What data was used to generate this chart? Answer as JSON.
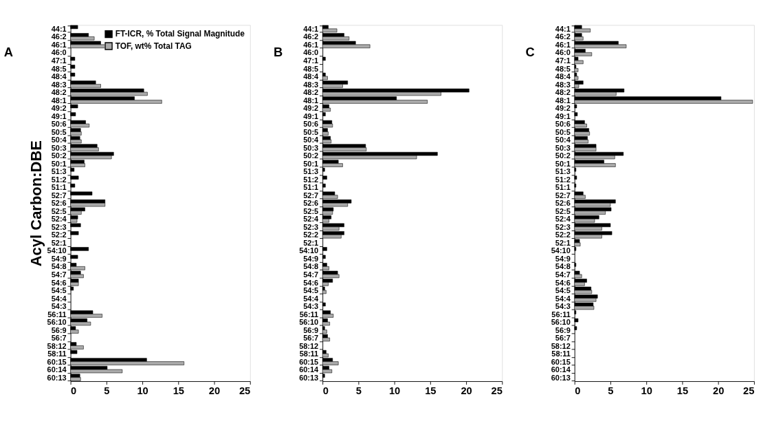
{
  "chart_data": [
    {
      "type": "bar",
      "orientation": "horizontal",
      "title": "A",
      "ylabel": "Acyl Carbon:DBE",
      "legend": "top right",
      "grid": false,
      "categories": [
        "44:1",
        "46:2",
        "46:1",
        "46:0",
        "47:1",
        "48:5",
        "48:4",
        "48:3",
        "48:2",
        "48:1",
        "49:2",
        "49:1",
        "50:6",
        "50:5",
        "50:4",
        "50:3",
        "50:2",
        "50:1",
        "51:3",
        "51:2",
        "51:1",
        "52:7",
        "52:6",
        "52:5",
        "52:4",
        "52:3",
        "52:2",
        "52:1",
        "54:10",
        "54:9",
        "54:8",
        "54:7",
        "54:6",
        "54:5",
        "54:4",
        "54:3",
        "56:11",
        "56:10",
        "56:9",
        "56:7",
        "58:12",
        "58:11",
        "60:15",
        "60:14",
        "60:13"
      ],
      "xlim": [
        0,
        25
      ],
      "xticks": [
        0,
        5,
        10,
        15,
        20,
        25
      ],
      "series": [
        {
          "name": "FT-ICR, % Total Signal Magnitude",
          "color": "#000000",
          "values": [
            1.0,
            2.5,
            4.2,
            null,
            0.6,
            0.6,
            0.6,
            3.5,
            10.2,
            8.9,
            1.0,
            0.7,
            2.1,
            1.4,
            1.3,
            3.7,
            6.0,
            1.9,
            0.5,
            1.1,
            0.6,
            3.0,
            4.8,
            2.0,
            1.0,
            1.4,
            1.1,
            null,
            2.5,
            1.0,
            0.8,
            1.4,
            1.1,
            0.4,
            null,
            null,
            3.1,
            2.3,
            0.7,
            null,
            0.8,
            0.9,
            10.6,
            5.1,
            1.3
          ]
        },
        {
          "name": "TOF, wt% Total TAG",
          "color": "#aaaaaa",
          "values": [
            null,
            3.3,
            4.8,
            null,
            null,
            null,
            null,
            4.2,
            10.7,
            12.7,
            null,
            null,
            2.6,
            1.5,
            1.5,
            3.9,
            5.7,
            2.0,
            null,
            null,
            null,
            null,
            4.8,
            1.5,
            0.9,
            null,
            null,
            null,
            null,
            null,
            2.0,
            1.8,
            1.1,
            null,
            null,
            null,
            4.4,
            2.8,
            1.1,
            null,
            1.8,
            null,
            15.8,
            7.2,
            1.4
          ]
        }
      ]
    },
    {
      "type": "bar",
      "orientation": "horizontal",
      "title": "B",
      "grid": false,
      "categories": [
        "44:1",
        "46:2",
        "46:1",
        "46:0",
        "47:1",
        "48:5",
        "48:4",
        "48:3",
        "48:2",
        "48:1",
        "49:2",
        "49:1",
        "50:6",
        "50:5",
        "50:4",
        "50:3",
        "50:2",
        "50:1",
        "51:3",
        "51:2",
        "51:1",
        "52:7",
        "52:6",
        "52:5",
        "52:4",
        "52:3",
        "52:2",
        "52:1",
        "54:10",
        "54:9",
        "54:8",
        "54:7",
        "54:6",
        "54:5",
        "54:4",
        "54:3",
        "56:11",
        "56:10",
        "56:9",
        "56:7",
        "58:12",
        "58:11",
        "60:15",
        "60:14",
        "60:13"
      ],
      "xlim": [
        0,
        25
      ],
      "xticks": [
        0,
        5,
        10,
        15,
        20,
        25
      ],
      "series": [
        {
          "color": "#000000",
          "values": [
            0.8,
            3.0,
            4.6,
            null,
            0.4,
            null,
            0.4,
            3.5,
            20.4,
            10.3,
            0.9,
            0.4,
            1.3,
            0.7,
            1.1,
            6.0,
            16.0,
            2.2,
            0.3,
            0.6,
            0.4,
            1.7,
            4.0,
            1.5,
            1.2,
            3.0,
            3.0,
            null,
            0.6,
            0.4,
            0.6,
            2.1,
            1.4,
            0.3,
            null,
            0.4,
            1.1,
            0.7,
            0.3,
            0.7,
            null,
            0.5,
            1.4,
            0.9,
            0.3
          ]
        },
        {
          "color": "#aaaaaa",
          "values": [
            2.0,
            3.7,
            6.6,
            null,
            null,
            null,
            0.7,
            2.8,
            16.5,
            14.6,
            1.1,
            null,
            1.4,
            0.8,
            1.2,
            6.1,
            13.1,
            2.8,
            null,
            null,
            null,
            2.1,
            3.5,
            1.4,
            0.9,
            2.3,
            2.6,
            null,
            null,
            null,
            0.9,
            2.3,
            0.8,
            0.5,
            null,
            null,
            1.5,
            1.0,
            0.6,
            1.0,
            null,
            0.8,
            2.2,
            1.3,
            null
          ]
        }
      ]
    },
    {
      "type": "bar",
      "orientation": "horizontal",
      "title": "C",
      "grid": false,
      "categories": [
        "44:1",
        "46:2",
        "46:1",
        "46:0",
        "47:1",
        "48:5",
        "48:4",
        "48:3",
        "48:2",
        "48:1",
        "49:2",
        "49:1",
        "50:6",
        "50:5",
        "50:4",
        "50:3",
        "50:2",
        "50:1",
        "51:3",
        "51:2",
        "51:1",
        "52:7",
        "52:6",
        "52:5",
        "52:4",
        "52:3",
        "52:2",
        "52:1",
        "54:10",
        "54:9",
        "54:8",
        "54:7",
        "54:6",
        "54:5",
        "54:4",
        "54:3",
        "56:11",
        "56:10",
        "56:9",
        "56:7",
        "58:12",
        "58:11",
        "60:15",
        "60:14",
        "60:13"
      ],
      "xlim": [
        0,
        25
      ],
      "xticks": [
        0,
        5,
        10,
        15,
        20,
        25
      ],
      "series": [
        {
          "color": "#000000",
          "values": [
            1.0,
            1.0,
            6.1,
            1.5,
            0.5,
            0.2,
            0.3,
            1.2,
            6.9,
            20.4,
            0.3,
            0.4,
            1.4,
            2.0,
            1.8,
            3.0,
            6.8,
            4.1,
            0.2,
            0.3,
            0.2,
            1.2,
            5.7,
            5.1,
            3.4,
            5.0,
            5.2,
            0.7,
            0.2,
            null,
            0.2,
            0.7,
            1.7,
            2.3,
            3.2,
            2.6,
            0.2,
            0.5,
            0.3,
            null,
            null,
            null,
            null,
            null,
            null
          ]
        },
        {
          "color": "#aaaaaa",
          "values": [
            2.2,
            1.2,
            7.2,
            2.4,
            1.2,
            0.5,
            0.5,
            0.6,
            5.8,
            24.8,
            null,
            null,
            1.7,
            2.1,
            1.9,
            3.0,
            5.6,
            5.7,
            null,
            null,
            null,
            1.5,
            5.0,
            4.3,
            2.8,
            3.8,
            3.8,
            0.8,
            null,
            null,
            null,
            1.0,
            1.4,
            2.4,
            3.0,
            2.7,
            null,
            null,
            null,
            null,
            null,
            null,
            null,
            null,
            null
          ]
        }
      ]
    }
  ]
}
